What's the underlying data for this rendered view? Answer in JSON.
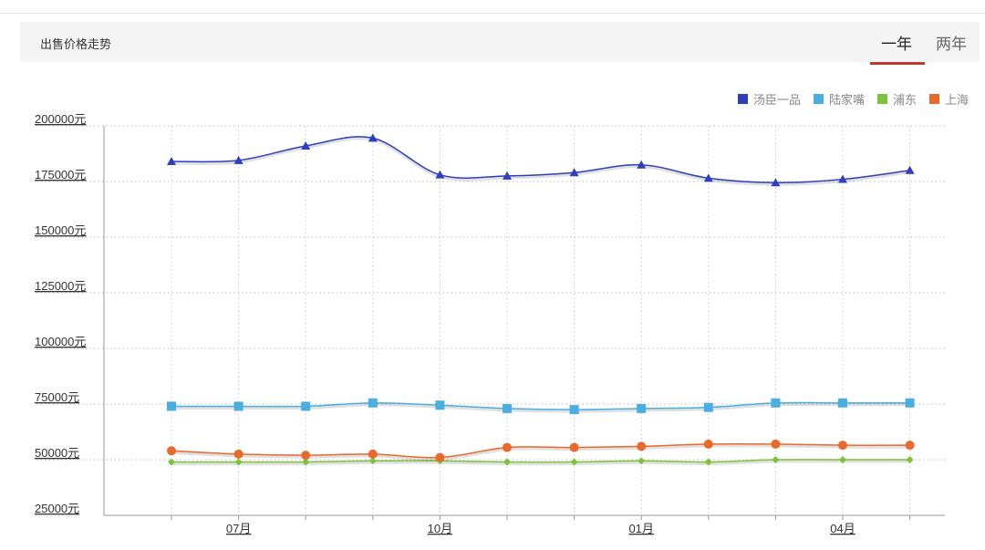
{
  "header": {
    "title": "出售价格走势",
    "tabs": [
      {
        "label": "一年",
        "active": true
      },
      {
        "label": "两年",
        "active": false
      }
    ],
    "accent": "#c0392b"
  },
  "chart_data": {
    "type": "line",
    "title": "",
    "xlabel": "",
    "ylabel": "",
    "y_unit_suffix": "元",
    "ylim": [
      25000,
      200000
    ],
    "yticks": [
      25000,
      50000,
      75000,
      100000,
      125000,
      150000,
      175000,
      200000
    ],
    "ytick_labels": [
      "25000元",
      "50000元",
      "75000元",
      "100000元",
      "125000元",
      "150000元",
      "175000元",
      "200000元"
    ],
    "x_labels": [
      "07月",
      "10月",
      "01月",
      "04月"
    ],
    "x_label_positions": [
      1,
      4,
      7,
      10
    ],
    "x_count": 12,
    "legend_position": "top-right",
    "grid": true,
    "series": [
      {
        "name": "汤臣一品",
        "color": "#2f3dbf",
        "marker": "triangle",
        "values": [
          184000,
          184500,
          191000,
          194500,
          178000,
          177500,
          179000,
          182500,
          176500,
          174500,
          176000,
          180000
        ]
      },
      {
        "name": "陆家嘴",
        "color": "#4aaee0",
        "marker": "square",
        "values": [
          74000,
          74000,
          74000,
          75500,
          74500,
          73000,
          72500,
          73000,
          73500,
          75500,
          75500,
          75500
        ]
      },
      {
        "name": "浦东",
        "color": "#7dc23a",
        "marker": "diamond",
        "values": [
          49000,
          49000,
          49000,
          49500,
          49500,
          49000,
          49000,
          49500,
          49000,
          50000,
          50000,
          50000
        ]
      },
      {
        "name": "上海",
        "color": "#e8692a",
        "marker": "circle",
        "values": [
          54000,
          52500,
          52000,
          52500,
          51000,
          55500,
          55500,
          56000,
          57000,
          57000,
          56500,
          56500
        ]
      }
    ]
  }
}
